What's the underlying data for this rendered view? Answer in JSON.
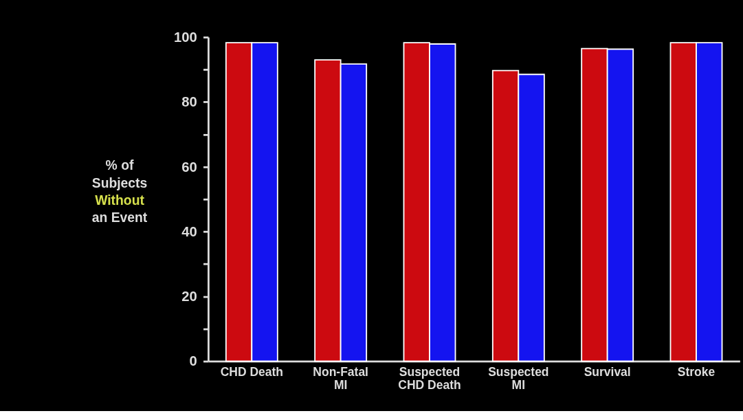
{
  "chart_data": {
    "type": "bar",
    "ylabel": "% of\nSubjects\nWithout\nan Event",
    "categories": [
      "CHD Death",
      "Non-Fatal MI",
      "Suspected CHD Death",
      "Suspected MI",
      "Survival",
      "Stroke"
    ],
    "series": [
      {
        "color": "#cc0a10",
        "values": [
          98.3,
          93.0,
          98.3,
          89.7,
          96.5,
          98.3
        ]
      },
      {
        "color": "#1414f0",
        "values": [
          98.3,
          91.7,
          97.9,
          88.5,
          96.3,
          98.3
        ]
      }
    ],
    "ylim": [
      0,
      100
    ],
    "yticks": [
      0,
      {
        "value": 10,
        "label": null
      },
      20,
      {
        "value": 30,
        "label": null
      },
      40,
      {
        "value": 50,
        "label": null
      },
      60,
      {
        "value": 70,
        "label": null
      },
      80,
      {
        "value": 90,
        "label": null
      },
      100
    ],
    "grid": false
  }
}
